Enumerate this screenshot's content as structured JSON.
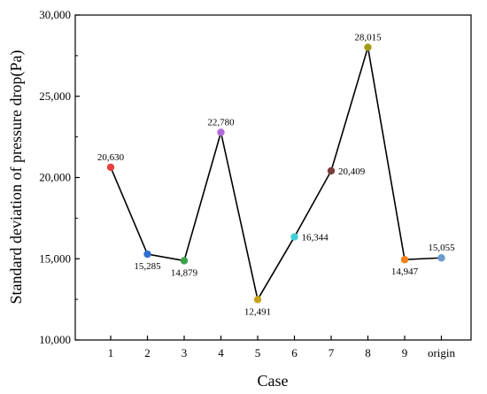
{
  "chart_data": {
    "type": "line",
    "title": "",
    "xlabel": "Case",
    "ylabel": "Standard deviation of pressure drop(Pa)",
    "ylim": [
      10000,
      30000
    ],
    "yticks": [
      "10,000",
      "15,000",
      "20,000",
      "25,000",
      "30,000"
    ],
    "yticks_values": [
      10000,
      15000,
      20000,
      25000,
      30000
    ],
    "categories": [
      "1",
      "2",
      "3",
      "4",
      "5",
      "6",
      "7",
      "8",
      "9",
      "origin"
    ],
    "values": [
      20630,
      15285,
      14879,
      22780,
      12491,
      16344,
      20409,
      28015,
      14947,
      15055
    ],
    "value_labels": [
      "20,630",
      "15,285",
      "14,879",
      "22,780",
      "12,491",
      "16,344",
      "20,409",
      "28,015",
      "14,947",
      "15,055"
    ],
    "label_positions": [
      "above",
      "below",
      "below",
      "above",
      "below",
      "right",
      "right",
      "above",
      "below",
      "above"
    ],
    "point_colors": [
      "#e8413b",
      "#2f6fd1",
      "#3aa24a",
      "#b26ad8",
      "#c7a21a",
      "#3fd0d8",
      "#7a3e3e",
      "#a39a1a",
      "#f07f1c",
      "#6a9ccc"
    ],
    "line_color": "#000000",
    "grid": false,
    "legend": "none"
  }
}
